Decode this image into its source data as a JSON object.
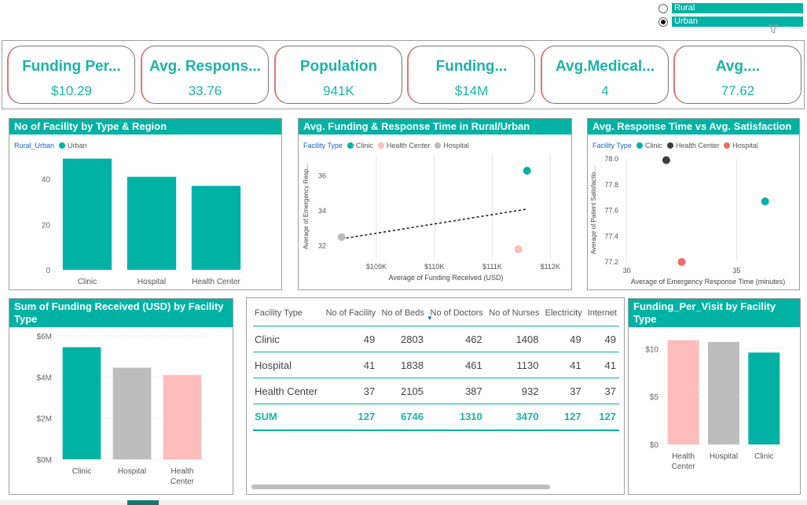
{
  "slicer": {
    "options": [
      {
        "label": "Rural",
        "checked": false
      },
      {
        "label": "Urban",
        "checked": true
      }
    ],
    "more": "···"
  },
  "kpis": [
    {
      "title": "Funding Per...",
      "value": "$10.29"
    },
    {
      "title": "Avg. Respons...",
      "value": "33.76"
    },
    {
      "title": "Population",
      "value": "941K"
    },
    {
      "title": "Funding...",
      "value": "$14M"
    },
    {
      "title": "Avg.Medical...",
      "value": "4"
    },
    {
      "title": "Avg....",
      "value": "77.62"
    }
  ],
  "panels": {
    "facility": {
      "title": "No of Facility by Type & Region",
      "legend_title": "Rural_Urban",
      "legend_item": "Urban"
    },
    "funding_response": {
      "title": "Avg. Funding & Response Time in Rural/Urban",
      "legend_title": "Facility Type",
      "legend_items": [
        "Clinic",
        "Health Center",
        "Hospital"
      ]
    },
    "response_satisfaction": {
      "title": "Avg. Response Time vs Avg. Satisfaction",
      "legend_title": "Facility Type",
      "legend_items": [
        "Clinic",
        "Health Center",
        "Hospital"
      ]
    },
    "funding_received": {
      "title": "Sum of Funding Received (USD) by Facility Type"
    },
    "funding_visit": {
      "title": "Funding_Per_Visit by Facility Type"
    }
  },
  "table": {
    "headers": [
      "Facility Type",
      "No of Facility",
      "No of Beds",
      "No of Doctors",
      "No of Nurses",
      "Electricity",
      "Internet"
    ],
    "rows": [
      [
        "Clinic",
        "49",
        "2803",
        "462",
        "1408",
        "49",
        "49"
      ],
      [
        "Hospital",
        "41",
        "1838",
        "461",
        "1130",
        "41",
        "41"
      ],
      [
        "Health Center",
        "37",
        "2105",
        "387",
        "932",
        "37",
        "37"
      ]
    ],
    "sum": [
      "SUM",
      "127",
      "6746",
      "1310",
      "3470",
      "127",
      "127"
    ]
  },
  "colors": {
    "teal": "#00b2a4",
    "pink": "#ffbcbc",
    "gray": "#bcbcbc",
    "dark": "#3d3d3d",
    "red": "#ef6b6b"
  },
  "chart_data": [
    {
      "type": "bar",
      "title": "No of Facility by Type & Region",
      "categories": [
        "Clinic",
        "Hospital",
        "Health Center"
      ],
      "series": [
        {
          "name": "Urban",
          "values": [
            49,
            41,
            37
          ]
        }
      ],
      "yticks": [
        "0",
        "20",
        "40"
      ],
      "ylim": [
        0,
        52
      ]
    },
    {
      "type": "scatter",
      "title": "Avg. Funding & Response Time in Rural/Urban",
      "xlabel": "Average of Funding Received (USD)",
      "ylabel": "Average of Emergency Resp...",
      "xticks": [
        "$109K",
        "$110K",
        "$111K",
        "$112K"
      ],
      "yticks": [
        "32",
        "34",
        "36"
      ],
      "xlim": [
        108200,
        112200
      ],
      "ylim": [
        31.3,
        37.2
      ],
      "points": [
        {
          "name": "Clinic",
          "x": 111600,
          "y": 36.3,
          "color": "#00b2a4"
        },
        {
          "name": "Health Center",
          "x": 111450,
          "y": 31.8,
          "color": "#ffbcbc"
        },
        {
          "name": "Hospital",
          "x": 108400,
          "y": 32.5,
          "color": "#bcbcbc"
        }
      ],
      "trendline": {
        "from": [
          108400,
          32.4
        ],
        "to": [
          111600,
          34.1
        ]
      }
    },
    {
      "type": "scatter",
      "title": "Avg. Response Time vs Avg. Satisfaction",
      "xlabel": "Average of Emergency Response Time (minutes)",
      "ylabel": "Average of Patient Satisfactio...",
      "xticks": [
        "30",
        "35"
      ],
      "yticks": [
        "77.2",
        "77.4",
        "77.6",
        "77.8",
        "78.0"
      ],
      "xlim": [
        29.8,
        37.6
      ],
      "ylim": [
        77.2,
        78.0
      ],
      "points": [
        {
          "name": "Clinic",
          "x": 36.3,
          "y": 77.67,
          "color": "#00b2a4"
        },
        {
          "name": "Health Center",
          "x": 31.8,
          "y": 77.99,
          "color": "#3d3d3d"
        },
        {
          "name": "Hospital",
          "x": 32.5,
          "y": 77.2,
          "color": "#ef6b6b"
        }
      ]
    },
    {
      "type": "bar",
      "title": "Sum of Funding Received (USD) by Facility Type",
      "categories": [
        "Clinic",
        "Hospital",
        "Health Center"
      ],
      "values": [
        5.45,
        4.45,
        4.1
      ],
      "colors": [
        "#00b2a4",
        "#bcbcbc",
        "#ffbcbc"
      ],
      "yticks": [
        "$0M",
        "$2M",
        "$4M",
        "$6M"
      ],
      "ylim": [
        0,
        6
      ]
    },
    {
      "type": "bar",
      "title": "Funding_Per_Visit by Facility Type",
      "categories": [
        "Health Center",
        "Hospital",
        "Clinic"
      ],
      "values": [
        10.9,
        10.7,
        9.6
      ],
      "colors": [
        "#ffbcbc",
        "#bcbcbc",
        "#00b2a4"
      ],
      "yticks": [
        "$0",
        "$5",
        "$10"
      ],
      "ylim": [
        0,
        12
      ]
    }
  ]
}
